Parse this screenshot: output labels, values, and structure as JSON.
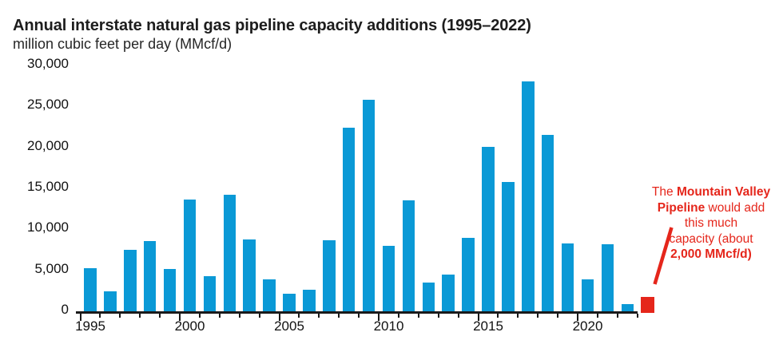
{
  "header": {
    "title": "Annual interstate natural gas pipeline capacity additions (1995–2022)",
    "units_label": "million cubic feet per day (MMcf/d)"
  },
  "colors": {
    "bar_blue": "#0a99d6",
    "highlight_red": "#e5261b",
    "axis_black": "#1a1a1a"
  },
  "chart_data": {
    "type": "bar",
    "title": "Annual interstate natural gas pipeline capacity additions (1995–2022)",
    "ylabel": "million cubic feet per day (MMcf/d)",
    "xlabel": "",
    "categories": [
      1995,
      1996,
      1997,
      1998,
      1999,
      2000,
      2001,
      2002,
      2003,
      2004,
      2005,
      2006,
      2007,
      2008,
      2009,
      2010,
      2011,
      2012,
      2013,
      2014,
      2015,
      2016,
      2017,
      2018,
      2019,
      2020,
      2021,
      2022
    ],
    "values": [
      5300,
      2400,
      7500,
      8600,
      5200,
      13600,
      4300,
      14200,
      8800,
      3900,
      2100,
      2600,
      8700,
      22400,
      25800,
      8000,
      13500,
      3500,
      4500,
      9000,
      20100,
      15800,
      28100,
      21500,
      8300,
      3900,
      8200,
      900
    ],
    "highlight": {
      "name": "Mountain Valley Pipeline",
      "value": 2000
    },
    "ylim": [
      0,
      30000
    ],
    "ytick_step": 5000,
    "ytick_labels": [
      "0",
      "5,000",
      "10,000",
      "15,000",
      "20,000",
      "25,000",
      "30,000"
    ],
    "xtick_labels": [
      "1995",
      "2000",
      "2005",
      "2010",
      "2015",
      "2020"
    ],
    "grid": false,
    "legend": "none"
  },
  "annotation": {
    "lines": [
      [
        {
          "t": "The ",
          "b": false
        },
        {
          "t": "Mountain Valley",
          "b": true
        }
      ],
      [
        {
          "t": "Pipeline",
          "b": true
        },
        {
          "t": " would add",
          "b": false
        }
      ],
      [
        {
          "t": "this much",
          "b": false
        }
      ],
      [
        {
          "t": "capacity (about",
          "b": false
        }
      ],
      [
        {
          "t": "2,000 MMcf/d)",
          "b": true
        }
      ]
    ]
  }
}
